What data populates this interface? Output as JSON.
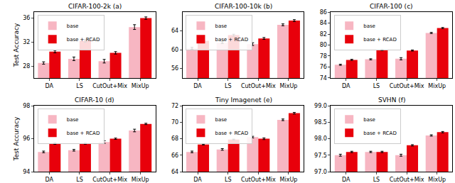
{
  "chart_data": [
    {
      "type": "bar",
      "title": "CIFAR-100-2k (a)",
      "ylabel": "Test Accuracy",
      "categories": [
        "DA",
        "LS",
        "CutOut+Mix",
        "MixUp"
      ],
      "series": [
        {
          "name": "base",
          "color": "#f7b6c2",
          "values": [
            28.5,
            29.2,
            28.8,
            34.5
          ],
          "errors": [
            0.2,
            0.3,
            0.3,
            0.4
          ]
        },
        {
          "name": "base + RCAD",
          "color": "#e8000b",
          "values": [
            30.4,
            32.2,
            30.2,
            36.0
          ],
          "errors": [
            0.2,
            0.2,
            0.2,
            0.2
          ]
        }
      ],
      "ylim": [
        26,
        37
      ],
      "yticks": [
        28,
        32,
        36
      ],
      "grid": false,
      "legend": "upper left"
    },
    {
      "type": "bar",
      "title": "CIFAR-100-10k (b)",
      "categories": [
        "DA",
        "LS",
        "CutOut+Mix",
        "MixUp"
      ],
      "series": [
        {
          "name": "base",
          "color": "#f7b6c2",
          "values": [
            60.3,
            61.5,
            61.2,
            65.3
          ],
          "errors": [
            0.2,
            0.2,
            0.3,
            0.2
          ]
        },
        {
          "name": "base + RCAD",
          "color": "#e8000b",
          "values": [
            61.9,
            63.1,
            62.4,
            66.2
          ],
          "errors": [
            0.1,
            0.2,
            0.2,
            0.2
          ]
        }
      ],
      "ylim": [
        54,
        68
      ],
      "yticks": [
        56,
        60,
        64
      ],
      "grid": false,
      "legend": "upper left"
    },
    {
      "type": "bar",
      "title": "CIFAR-100 (c)",
      "categories": [
        "DA",
        "LS",
        "CutOut+Mix",
        "MixUp"
      ],
      "series": [
        {
          "name": "base",
          "color": "#f7b6c2",
          "values": [
            76.4,
            77.4,
            77.5,
            82.2
          ],
          "errors": [
            0.1,
            0.1,
            0.2,
            0.1
          ]
        },
        {
          "name": "base + RCAD",
          "color": "#e8000b",
          "values": [
            77.3,
            79.1,
            79.0,
            83.1
          ],
          "errors": [
            0.1,
            0.1,
            0.1,
            0.1
          ]
        }
      ],
      "ylim": [
        74,
        86
      ],
      "yticks": [
        74,
        76,
        78,
        80,
        82,
        84,
        86
      ],
      "grid": false,
      "legend": "upper left"
    },
    {
      "type": "bar",
      "title": "CIFAR-10 (d)",
      "ylabel": "Test Accuracy",
      "categories": [
        "DA",
        "LS",
        "CutOut+Mix",
        "MixUp"
      ],
      "series": [
        {
          "name": "base",
          "color": "#f7b6c2",
          "values": [
            95.2,
            95.3,
            95.8,
            96.5
          ],
          "errors": [
            0.05,
            0.05,
            0.08,
            0.08
          ]
        },
        {
          "name": "base + RCAD",
          "color": "#e8000b",
          "values": [
            95.7,
            95.7,
            96.0,
            96.9
          ],
          "errors": [
            0.04,
            0.03,
            0.04,
            0.04
          ]
        }
      ],
      "ylim": [
        94,
        98
      ],
      "yticks": [
        94,
        96,
        98
      ],
      "grid": false,
      "legend": "upper left"
    },
    {
      "type": "bar",
      "title": "Tiny Imagenet (e)",
      "categories": [
        "DA",
        "LS",
        "CutOut+Mix",
        "MixUp"
      ],
      "series": [
        {
          "name": "base",
          "color": "#f7b6c2",
          "values": [
            66.4,
            66.7,
            68.2,
            70.3
          ],
          "errors": [
            0.1,
            0.1,
            0.1,
            0.1
          ]
        },
        {
          "name": "base + RCAD",
          "color": "#e8000b",
          "values": [
            67.3,
            67.9,
            68.0,
            71.1
          ],
          "errors": [
            0.05,
            0.05,
            0.1,
            0.1
          ]
        }
      ],
      "ylim": [
        64,
        72
      ],
      "yticks": [
        64,
        66,
        68,
        70,
        72
      ],
      "grid": false,
      "legend": "upper left"
    },
    {
      "type": "bar",
      "title": "SVHN (f)",
      "categories": [
        "DA",
        "LS",
        "CutOut+Mix",
        "MixUp"
      ],
      "series": [
        {
          "name": "base",
          "color": "#f7b6c2",
          "values": [
            97.5,
            97.6,
            97.5,
            98.1
          ],
          "errors": [
            0.03,
            0.02,
            0.03,
            0.02
          ]
        },
        {
          "name": "base + RCAD",
          "color": "#e8000b",
          "values": [
            97.6,
            97.6,
            97.8,
            98.2
          ],
          "errors": [
            0.02,
            0.02,
            0.02,
            0.02
          ]
        }
      ],
      "ylim": [
        97,
        99
      ],
      "yticks": [
        {
          "value": 97,
          "label": "97.0"
        },
        {
          "value": 97.5,
          "label": "97.5"
        },
        {
          "value": 98,
          "label": "98.0"
        },
        {
          "value": 98.5,
          "label": "98.5"
        },
        {
          "value": 99,
          "label": "99.0"
        }
      ],
      "grid": false,
      "legend": "upper left"
    }
  ]
}
